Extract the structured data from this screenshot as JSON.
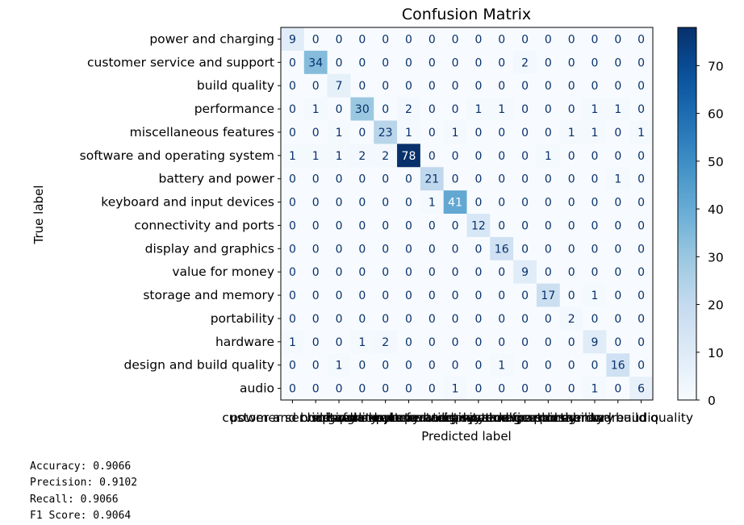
{
  "chart_data": {
    "type": "heatmap",
    "title": "Confusion Matrix",
    "xlabel": "Predicted label",
    "ylabel": "True label",
    "labels": [
      "power and charging",
      "customer service and support",
      "build quality",
      "performance",
      "miscellaneous features",
      "software and operating system",
      "battery and power",
      "keyboard and input devices",
      "connectivity and ports",
      "display and graphics",
      "value for money",
      "storage and memory",
      "portability",
      "hardware",
      "design and build quality",
      "audio"
    ],
    "matrix": [
      [
        9,
        0,
        0,
        0,
        0,
        0,
        0,
        0,
        0,
        0,
        0,
        0,
        0,
        0,
        0,
        0
      ],
      [
        0,
        34,
        0,
        0,
        0,
        0,
        0,
        0,
        0,
        0,
        2,
        0,
        0,
        0,
        0,
        0
      ],
      [
        0,
        0,
        7,
        0,
        0,
        0,
        0,
        0,
        0,
        0,
        0,
        0,
        0,
        0,
        0,
        0
      ],
      [
        0,
        1,
        0,
        30,
        0,
        2,
        0,
        0,
        1,
        1,
        0,
        0,
        0,
        1,
        1,
        0
      ],
      [
        0,
        0,
        1,
        0,
        23,
        1,
        0,
        1,
        0,
        0,
        0,
        0,
        1,
        1,
        0,
        1
      ],
      [
        1,
        1,
        1,
        2,
        2,
        78,
        0,
        0,
        0,
        0,
        0,
        1,
        0,
        0,
        0,
        0
      ],
      [
        0,
        0,
        0,
        0,
        0,
        0,
        21,
        0,
        0,
        0,
        0,
        0,
        0,
        0,
        1,
        0
      ],
      [
        0,
        0,
        0,
        0,
        0,
        0,
        1,
        41,
        0,
        0,
        0,
        0,
        0,
        0,
        0,
        0
      ],
      [
        0,
        0,
        0,
        0,
        0,
        0,
        0,
        0,
        12,
        0,
        0,
        0,
        0,
        0,
        0,
        0
      ],
      [
        0,
        0,
        0,
        0,
        0,
        0,
        0,
        0,
        0,
        16,
        0,
        0,
        0,
        0,
        0,
        0
      ],
      [
        0,
        0,
        0,
        0,
        0,
        0,
        0,
        0,
        0,
        0,
        9,
        0,
        0,
        0,
        0,
        0
      ],
      [
        0,
        0,
        0,
        0,
        0,
        0,
        0,
        0,
        0,
        0,
        0,
        17,
        0,
        1,
        0,
        0
      ],
      [
        0,
        0,
        0,
        0,
        0,
        0,
        0,
        0,
        0,
        0,
        0,
        0,
        2,
        0,
        0,
        0
      ],
      [
        1,
        0,
        0,
        1,
        2,
        0,
        0,
        0,
        0,
        0,
        0,
        0,
        0,
        9,
        0,
        0
      ],
      [
        0,
        0,
        1,
        0,
        0,
        0,
        0,
        0,
        0,
        1,
        0,
        0,
        0,
        0,
        16,
        0
      ],
      [
        0,
        0,
        0,
        0,
        0,
        0,
        0,
        1,
        0,
        0,
        0,
        0,
        0,
        1,
        0,
        6
      ]
    ],
    "colormap": "Blues",
    "vmin": 0,
    "vmax": 78,
    "colorbar_ticks": [
      "0",
      "10",
      "20",
      "30",
      "40",
      "50",
      "60",
      "70"
    ],
    "colorbar_tick_values": [
      0,
      10,
      20,
      30,
      40,
      50,
      60,
      70
    ]
  },
  "metrics": {
    "accuracy": "Accuracy: 0.9066",
    "precision": "Precision: 0.9102",
    "recall": "Recall: 0.9066",
    "f1": "F1 Score: 0.9064"
  }
}
